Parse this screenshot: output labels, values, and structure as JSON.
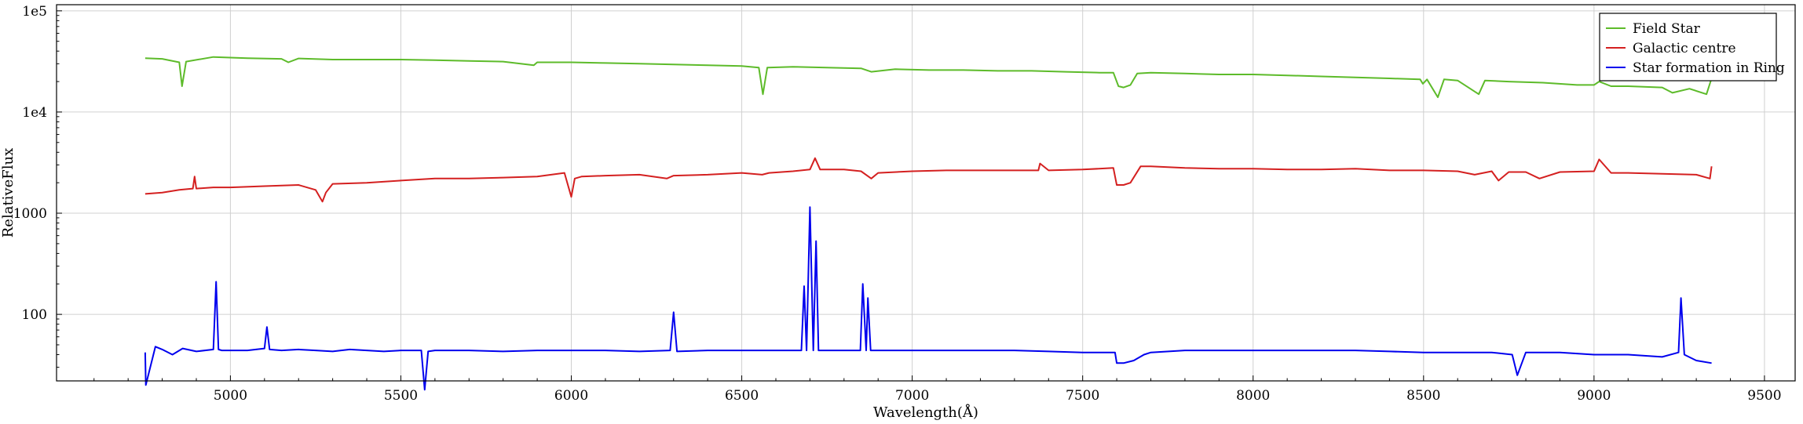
{
  "chart_data": {
    "type": "line",
    "title": "",
    "xlabel": "Wavelength(Å)",
    "ylabel": "RelativeFlux",
    "yscale": "log",
    "xlim": [
      4490,
      9590
    ],
    "ylim": [
      22,
      115000
    ],
    "grid": true,
    "legend_position": "top-right",
    "x_ticks": [
      5000,
      5500,
      6000,
      6500,
      7000,
      7500,
      8000,
      8500,
      9000,
      9500
    ],
    "x_tick_labels": [
      "5000",
      "5500",
      "6000",
      "6500",
      "7000",
      "7500",
      "8000",
      "8500",
      "9000",
      "9500"
    ],
    "y_ticks": [
      100,
      1000,
      10000,
      100000
    ],
    "y_tick_labels": [
      "100",
      "1000",
      "1e4",
      "1e5"
    ],
    "series": [
      {
        "name": "Field Star",
        "color": "#5dbb2a",
        "x": [
          4750,
          4800,
          4850,
          4858,
          4870,
          4950,
          5050,
          5150,
          5170,
          5200,
          5300,
          5400,
          5500,
          5600,
          5700,
          5800,
          5890,
          5900,
          6000,
          6100,
          6200,
          6300,
          6400,
          6500,
          6550,
          6562,
          6575,
          6650,
          6750,
          6850,
          6880,
          6950,
          7050,
          7150,
          7250,
          7350,
          7450,
          7550,
          7590,
          7605,
          7620,
          7640,
          7660,
          7700,
          7800,
          7900,
          8000,
          8100,
          8200,
          8300,
          8400,
          8490,
          8498,
          8510,
          8542,
          8560,
          8600,
          8662,
          8680,
          8750,
          8850,
          8950,
          9000,
          9015,
          9050,
          9100,
          9200,
          9230,
          9280,
          9330,
          9345
        ],
        "y": [
          34000,
          33500,
          31000,
          18000,
          31500,
          35000,
          34000,
          33500,
          31000,
          33800,
          33000,
          33000,
          33000,
          32500,
          32000,
          31500,
          29000,
          31000,
          31000,
          30500,
          30000,
          29500,
          29000,
          28500,
          27500,
          15000,
          27500,
          28000,
          27500,
          27000,
          25000,
          26500,
          26000,
          26000,
          25500,
          25500,
          25000,
          24500,
          24500,
          18000,
          17500,
          18500,
          24000,
          24500,
          24000,
          23500,
          23500,
          23000,
          22500,
          22000,
          21500,
          21000,
          19000,
          21000,
          14000,
          21000,
          20500,
          15000,
          20500,
          20000,
          19500,
          18500,
          18500,
          20000,
          18000,
          18000,
          17500,
          15500,
          17000,
          15000,
          21500
        ]
      },
      {
        "name": "Galactic centre",
        "color": "#d42020",
        "x": [
          4750,
          4800,
          4850,
          4890,
          4895,
          4900,
          4950,
          5000,
          5100,
          5200,
          5250,
          5270,
          5280,
          5300,
          5400,
          5500,
          5600,
          5700,
          5800,
          5900,
          5980,
          6000,
          6010,
          6030,
          6100,
          6200,
          6280,
          6300,
          6400,
          6500,
          6560,
          6580,
          6650,
          6700,
          6715,
          6730,
          6800,
          6850,
          6880,
          6900,
          7000,
          7100,
          7200,
          7300,
          7370,
          7375,
          7400,
          7500,
          7590,
          7600,
          7620,
          7640,
          7670,
          7700,
          7800,
          7900,
          8000,
          8100,
          8200,
          8300,
          8400,
          8500,
          8600,
          8650,
          8700,
          8720,
          8750,
          8800,
          8840,
          8900,
          9000,
          9015,
          9050,
          9100,
          9200,
          9300,
          9340,
          9345
        ],
        "y": [
          1550,
          1600,
          1700,
          1750,
          2300,
          1750,
          1800,
          1800,
          1850,
          1900,
          1700,
          1300,
          1600,
          1950,
          2000,
          2100,
          2200,
          2200,
          2250,
          2300,
          2500,
          1450,
          2200,
          2300,
          2350,
          2400,
          2200,
          2350,
          2400,
          2500,
          2400,
          2500,
          2600,
          2700,
          3500,
          2700,
          2700,
          2600,
          2200,
          2500,
          2600,
          2650,
          2650,
          2650,
          2650,
          3100,
          2650,
          2700,
          2800,
          1900,
          1900,
          2000,
          2900,
          2900,
          2800,
          2750,
          2750,
          2700,
          2700,
          2750,
          2650,
          2650,
          2600,
          2400,
          2600,
          2100,
          2550,
          2550,
          2200,
          2550,
          2600,
          3400,
          2500,
          2500,
          2450,
          2400,
          2200,
          2900
        ]
      },
      {
        "name": "Star formation in Ring",
        "color": "#0000ee",
        "x": [
          4750,
          4752,
          4780,
          4800,
          4830,
          4860,
          4900,
          4950,
          4958,
          4965,
          4975,
          5000,
          5050,
          5100,
          5107,
          5115,
          5150,
          5200,
          5250,
          5300,
          5350,
          5400,
          5450,
          5500,
          5560,
          5570,
          5580,
          5600,
          5700,
          5800,
          5900,
          6000,
          6100,
          6200,
          6290,
          6300,
          6310,
          6400,
          6500,
          6600,
          6675,
          6683,
          6690,
          6700,
          6710,
          6718,
          6725,
          6740,
          6800,
          6848,
          6855,
          6865,
          6870,
          6878,
          6900,
          7000,
          7100,
          7200,
          7300,
          7400,
          7500,
          7595,
          7600,
          7620,
          7650,
          7680,
          7700,
          7800,
          7900,
          8000,
          8100,
          8200,
          8300,
          8400,
          8500,
          8600,
          8700,
          8760,
          8775,
          8800,
          8850,
          8900,
          9000,
          9100,
          9200,
          9248,
          9255,
          9265,
          9300,
          9345
        ],
        "y": [
          42,
          20,
          48,
          45,
          40,
          46,
          43,
          45,
          210,
          45,
          44,
          44,
          44,
          46,
          75,
          45,
          44,
          45,
          44,
          43,
          45,
          44,
          43,
          44,
          44,
          18,
          43,
          44,
          44,
          43,
          44,
          44,
          44,
          43,
          44,
          105,
          43,
          44,
          44,
          44,
          44,
          190,
          44,
          1150,
          44,
          530,
          44,
          44,
          44,
          44,
          200,
          44,
          145,
          44,
          44,
          44,
          44,
          44,
          44,
          43,
          42,
          42,
          33,
          33,
          35,
          40,
          42,
          44,
          44,
          44,
          44,
          44,
          44,
          43,
          42,
          42,
          42,
          40,
          25,
          42,
          42,
          42,
          40,
          40,
          38,
          42,
          145,
          40,
          35,
          33
        ]
      }
    ]
  }
}
